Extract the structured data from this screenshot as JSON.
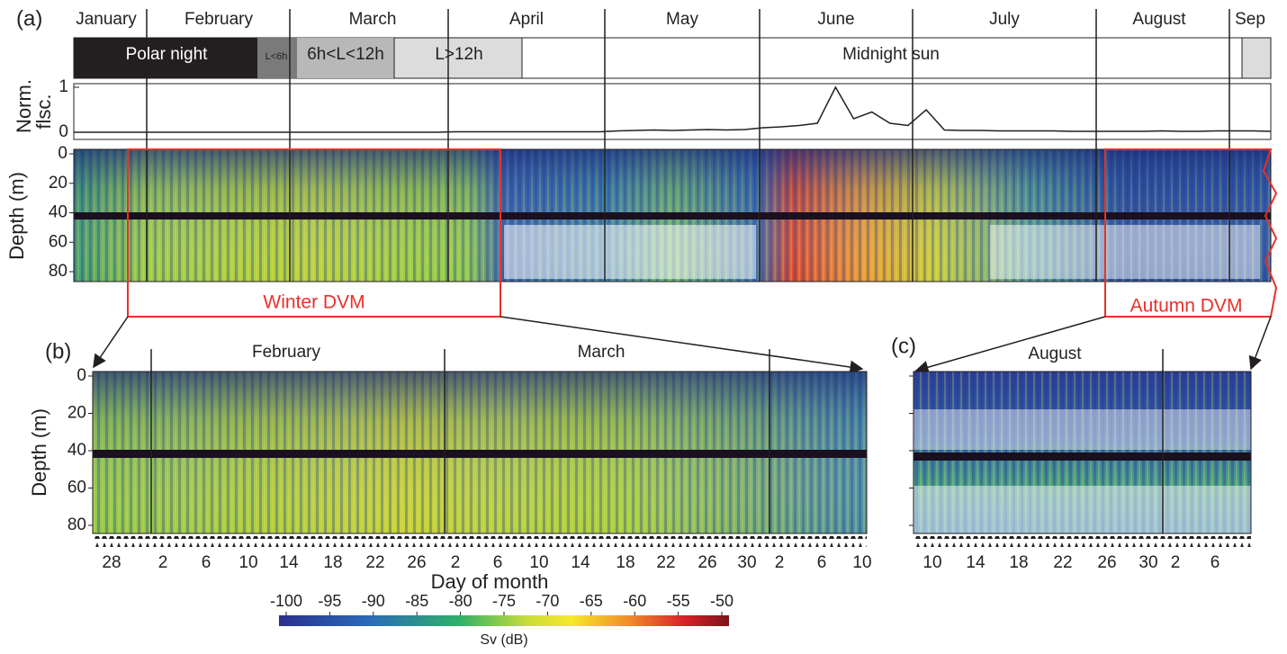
{
  "panels": {
    "a": "(a)",
    "b": "(b)",
    "c": "(c)"
  },
  "months_a": [
    "January",
    "February",
    "March",
    "April",
    "May",
    "June",
    "July",
    "August",
    "Sep"
  ],
  "light_periods": [
    "Polar night",
    "L<6h",
    "6h<L<12h",
    "L>12h",
    "Midnight sun"
  ],
  "fluorescence": {
    "label_line1": "Norm.",
    "label_line2": "flsc.",
    "yticks": [
      0,
      1
    ],
    "values": [
      0,
      0,
      0,
      0,
      0,
      0,
      0,
      0,
      0,
      0,
      0,
      0,
      0,
      0,
      0,
      0,
      0,
      0,
      0,
      0,
      0,
      0.01,
      0.01,
      0.01,
      0.01,
      0.01,
      0.01,
      0.01,
      0.01,
      0.01,
      0.03,
      0.04,
      0.05,
      0.04,
      0.05,
      0.06,
      0.05,
      0.06,
      0.1,
      0.12,
      0.15,
      0.2,
      1,
      0.3,
      0.45,
      0.2,
      0.15,
      0.5,
      0.05,
      0.04,
      0.04,
      0.03,
      0.03,
      0.03,
      0.03,
      0.02,
      0.02,
      0.02,
      0.02,
      0.02,
      0.03,
      0.02,
      0.02,
      0.03,
      0.03,
      0.03,
      0.02
    ]
  },
  "depth_axis": {
    "label": "Depth (m)",
    "ticks": [
      0,
      20,
      40,
      60,
      80
    ]
  },
  "boxes": [
    "Winter DVM",
    "Autumn DVM"
  ],
  "panel_b": {
    "months": [
      "February",
      "March"
    ],
    "days": [
      28,
      2,
      6,
      10,
      14,
      18,
      22,
      26,
      2,
      6,
      10,
      14,
      18,
      22,
      26,
      30,
      2,
      6,
      10
    ]
  },
  "panel_c": {
    "month": "August",
    "days": [
      10,
      14,
      18,
      22,
      26,
      30,
      2,
      6
    ]
  },
  "x_label": "Day of month",
  "colorbar": {
    "ticks": [
      -100,
      -95,
      -90,
      -85,
      -80,
      -75,
      -70,
      -65,
      -60,
      -55,
      -50
    ],
    "label": "Sv (dB)"
  }
}
